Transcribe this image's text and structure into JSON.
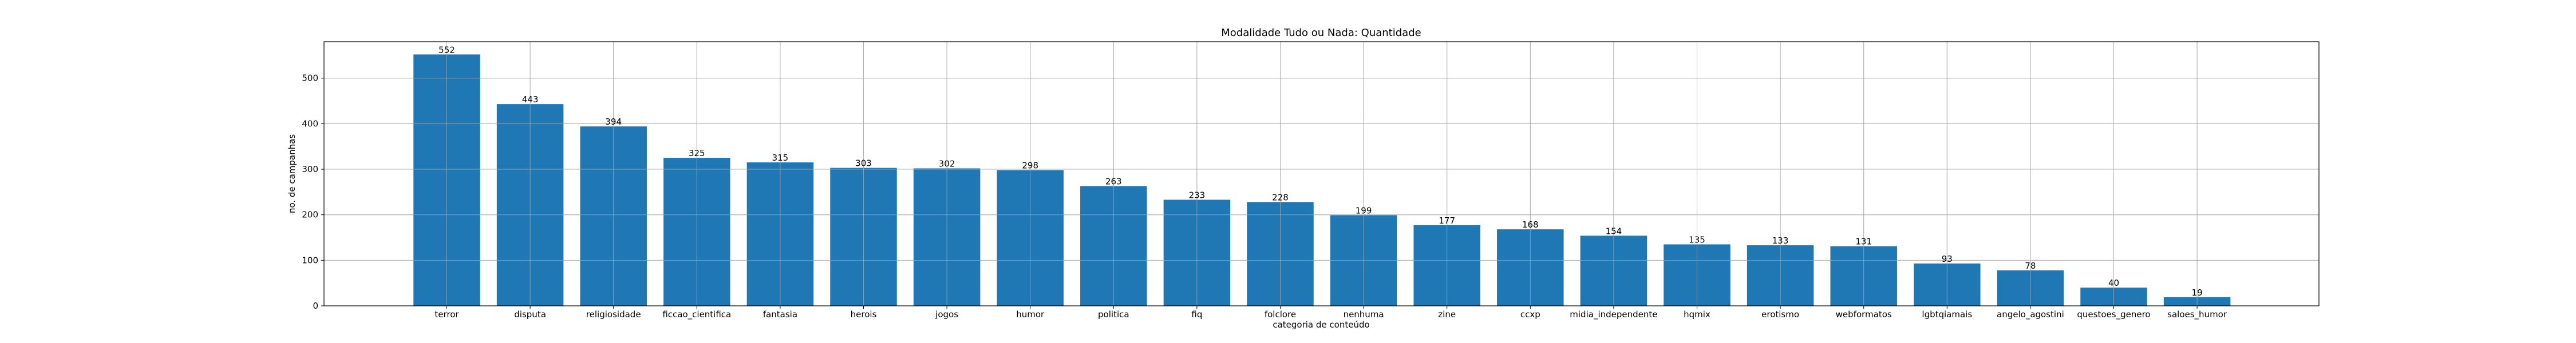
{
  "chart_data": {
    "type": "bar",
    "title": "Modalidade Tudo ou Nada: Quantidade",
    "xlabel": "categoria de conteúdo",
    "ylabel": "no. de campanhas",
    "categories": [
      "terror",
      "disputa",
      "religiosidade",
      "ficcao_cientifica",
      "fantasia",
      "herois",
      "jogos",
      "humor",
      "politica",
      "fiq",
      "folclore",
      "nenhuma",
      "zine",
      "ccxp",
      "midia_independente",
      "hqmix",
      "erotismo",
      "webformatos",
      "lgbtqiamais",
      "angelo_agostini",
      "questoes_genero",
      "saloes_humor"
    ],
    "values": [
      552,
      443,
      394,
      325,
      315,
      303,
      302,
      298,
      263,
      233,
      228,
      199,
      177,
      168,
      154,
      135,
      133,
      131,
      93,
      78,
      40,
      19
    ],
    "ylim": [
      0,
      580
    ],
    "yticks": [
      0,
      100,
      200,
      300,
      400,
      500
    ],
    "grid": true,
    "bar_color": "#1f77b4"
  }
}
